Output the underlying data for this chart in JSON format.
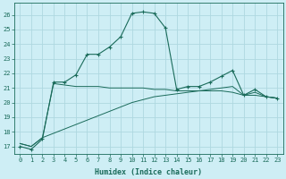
{
  "xlabel": "Humidex (Indice chaleur)",
  "bg_color": "#ceeef5",
  "grid_color": "#aed8e0",
  "line_color": "#1a6b5a",
  "xlim": [
    -0.5,
    23.5
  ],
  "ylim": [
    16.5,
    26.8
  ],
  "yticks": [
    17,
    18,
    19,
    20,
    21,
    22,
    23,
    24,
    25,
    26
  ],
  "xticks": [
    0,
    1,
    2,
    3,
    4,
    5,
    6,
    7,
    8,
    9,
    10,
    11,
    12,
    13,
    14,
    15,
    16,
    17,
    18,
    19,
    20,
    21,
    22,
    23
  ],
  "line1_x": [
    0,
    1,
    2,
    3,
    4,
    5,
    6,
    7,
    8,
    9,
    10,
    11,
    12,
    13,
    14,
    15,
    16,
    17,
    18,
    19,
    20,
    21,
    22,
    23
  ],
  "line1_y": [
    17.0,
    16.8,
    17.5,
    21.4,
    21.4,
    21.9,
    23.3,
    23.3,
    23.8,
    24.5,
    26.1,
    26.2,
    26.1,
    25.1,
    20.9,
    21.1,
    21.1,
    21.4,
    21.8,
    22.2,
    20.5,
    20.9,
    20.4,
    20.3
  ],
  "line2_x": [
    0,
    1,
    2,
    3,
    4,
    5,
    6,
    7,
    8,
    9,
    10,
    11,
    12,
    13,
    14,
    15,
    16,
    17,
    18,
    19,
    20,
    21,
    22,
    23
  ],
  "line2_y": [
    17.2,
    17.0,
    17.6,
    21.3,
    21.2,
    21.1,
    21.1,
    21.1,
    21.0,
    21.0,
    21.0,
    21.0,
    20.9,
    20.9,
    20.8,
    20.8,
    20.8,
    20.8,
    20.8,
    20.7,
    20.5,
    20.5,
    20.4,
    20.3
  ],
  "line3_x": [
    0,
    1,
    2,
    3,
    4,
    5,
    6,
    7,
    8,
    9,
    10,
    11,
    12,
    13,
    14,
    15,
    16,
    17,
    18,
    19,
    20,
    21,
    22,
    23
  ],
  "line3_y": [
    17.2,
    17.0,
    17.6,
    17.9,
    18.2,
    18.5,
    18.8,
    19.1,
    19.4,
    19.7,
    20.0,
    20.2,
    20.4,
    20.5,
    20.6,
    20.7,
    20.8,
    20.9,
    21.0,
    21.1,
    20.5,
    20.7,
    20.4,
    20.3
  ],
  "ylabel_fontsize": 5.5,
  "xlabel_fontsize": 6.0,
  "tick_fontsize": 5.0
}
